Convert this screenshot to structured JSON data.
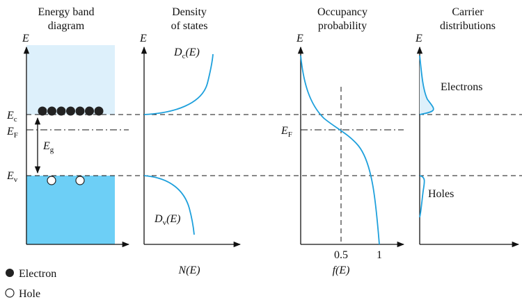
{
  "panels": [
    {
      "title": [
        "Energy band",
        "diagram"
      ],
      "axis_label": "E"
    },
    {
      "title": [
        "Density",
        "of states"
      ],
      "axis_label": "E"
    },
    {
      "title": [
        "Occupancy",
        "probability"
      ],
      "axis_label": "E"
    },
    {
      "title": [
        "Carrier",
        "distributions"
      ],
      "axis_label": "E"
    }
  ],
  "levels": {
    "conduction": {
      "base": "E",
      "sub": "c"
    },
    "fermi": {
      "base": "E",
      "sub": "F"
    },
    "gap": {
      "base": "E",
      "sub": "g"
    },
    "valence": {
      "base": "E",
      "sub": "v"
    }
  },
  "density": {
    "conduction": {
      "base": "D",
      "sub": "c",
      "arg": "(E)"
    },
    "valence": {
      "base": "D",
      "sub": "v",
      "arg": "(E)"
    },
    "x_label": "N(E)"
  },
  "occupancy": {
    "fermi": {
      "base": "E",
      "sub": "F"
    },
    "x_ticks": [
      "0.5",
      "1"
    ],
    "x_label": "f(E)"
  },
  "carriers": {
    "electrons": "Electrons",
    "holes": "Holes"
  },
  "legend": {
    "electron": "Electron",
    "hole": "Hole"
  }
}
